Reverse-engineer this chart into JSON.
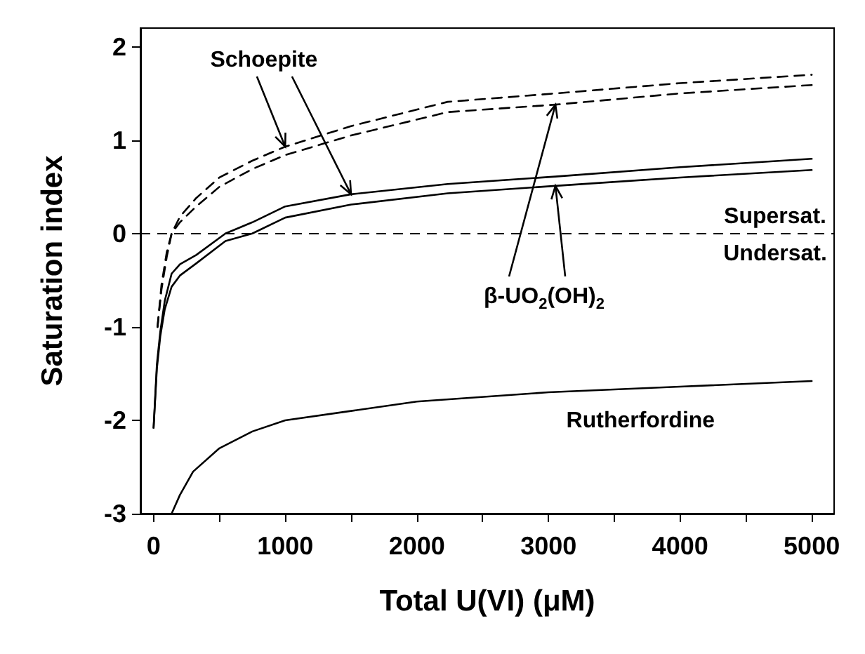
{
  "chart_data": {
    "type": "line",
    "xlabel": "Total U(VI) (μM)",
    "ylabel": "Saturation index",
    "xlim": [
      -100,
      5170
    ],
    "ylim": [
      -3,
      2.2
    ],
    "xticks": [
      0,
      {
        "value": 500,
        "label": null
      },
      1000,
      {
        "value": 1500,
        "label": null
      },
      2000,
      {
        "value": 2500,
        "label": null
      },
      3000,
      {
        "value": 3500,
        "label": null
      },
      4000,
      {
        "value": 4500,
        "label": null
      },
      5000
    ],
    "yticks": [
      -3,
      -2,
      -1,
      0,
      1,
      2
    ],
    "grid": false,
    "marker": "none",
    "series": [
      {
        "color": "#000000",
        "line_style": "dashed",
        "x": [
          30,
          60,
          100,
          137,
          200,
          324,
          500,
          750,
          1000,
          1500,
          2234,
          3053,
          4000,
          5000
        ],
        "values": [
          -1.0,
          -0.55,
          -0.2,
          0,
          0.18,
          0.38,
          0.6,
          0.78,
          0.93,
          1.15,
          1.41,
          1.5,
          1.61,
          1.7
        ]
      },
      {
        "color": "#000000",
        "line_style": "dashed",
        "x": [
          30,
          60,
          100,
          137,
          200,
          324,
          500,
          750,
          1000,
          1500,
          2234,
          3053,
          4000,
          5000
        ],
        "values": [
          -1.0,
          -0.6,
          -0.25,
          0,
          0.12,
          0.29,
          0.5,
          0.69,
          0.84,
          1.05,
          1.3,
          1.38,
          1.5,
          1.59
        ]
      },
      {
        "color": "#000000",
        "line_style": "solid",
        "x": [
          0,
          25,
          51,
          85,
          137,
          200,
          324,
          546,
          750,
          1000,
          1500,
          2234,
          3053,
          4000,
          5000
        ],
        "values": [
          -2.08,
          -1.4,
          -1.05,
          -0.72,
          -0.43,
          -0.33,
          -0.23,
          0,
          0.12,
          0.29,
          0.42,
          0.53,
          0.61,
          0.71,
          0.8
        ]
      },
      {
        "color": "#000000",
        "line_style": "solid",
        "x": [
          0,
          25,
          51,
          85,
          137,
          200,
          324,
          546,
          750,
          1000,
          1500,
          2234,
          3053,
          4000,
          5000
        ],
        "values": [
          -2.08,
          -1.45,
          -1.1,
          -0.81,
          -0.57,
          -0.45,
          -0.32,
          -0.08,
          0,
          0.17,
          0.31,
          0.43,
          0.51,
          0.6,
          0.68
        ]
      },
      {
        "color": "#000000",
        "line_style": "solid",
        "x": [
          137,
          200,
          300,
          500,
          750,
          1000,
          1500,
          2000,
          3000,
          4000,
          5000
        ],
        "values": [
          -3,
          -2.8,
          -2.55,
          -2.3,
          -2.12,
          -2.0,
          -1.9,
          -1.8,
          -1.7,
          -1.64,
          -1.58
        ]
      }
    ],
    "ref_lines": [
      {
        "axis": "y",
        "value": 0,
        "color": "#000000",
        "line_style": "dashed"
      }
    ],
    "annotations": [
      {
        "text": "Schoepite",
        "x": 1000,
        "y": 0.93
      },
      {
        "text": "β-UO$_{2}$(OH)$_{2}$",
        "x": 3053,
        "y": 1.38
      },
      "Rutherfordine",
      "Supersat.",
      "Undersat."
    ]
  }
}
